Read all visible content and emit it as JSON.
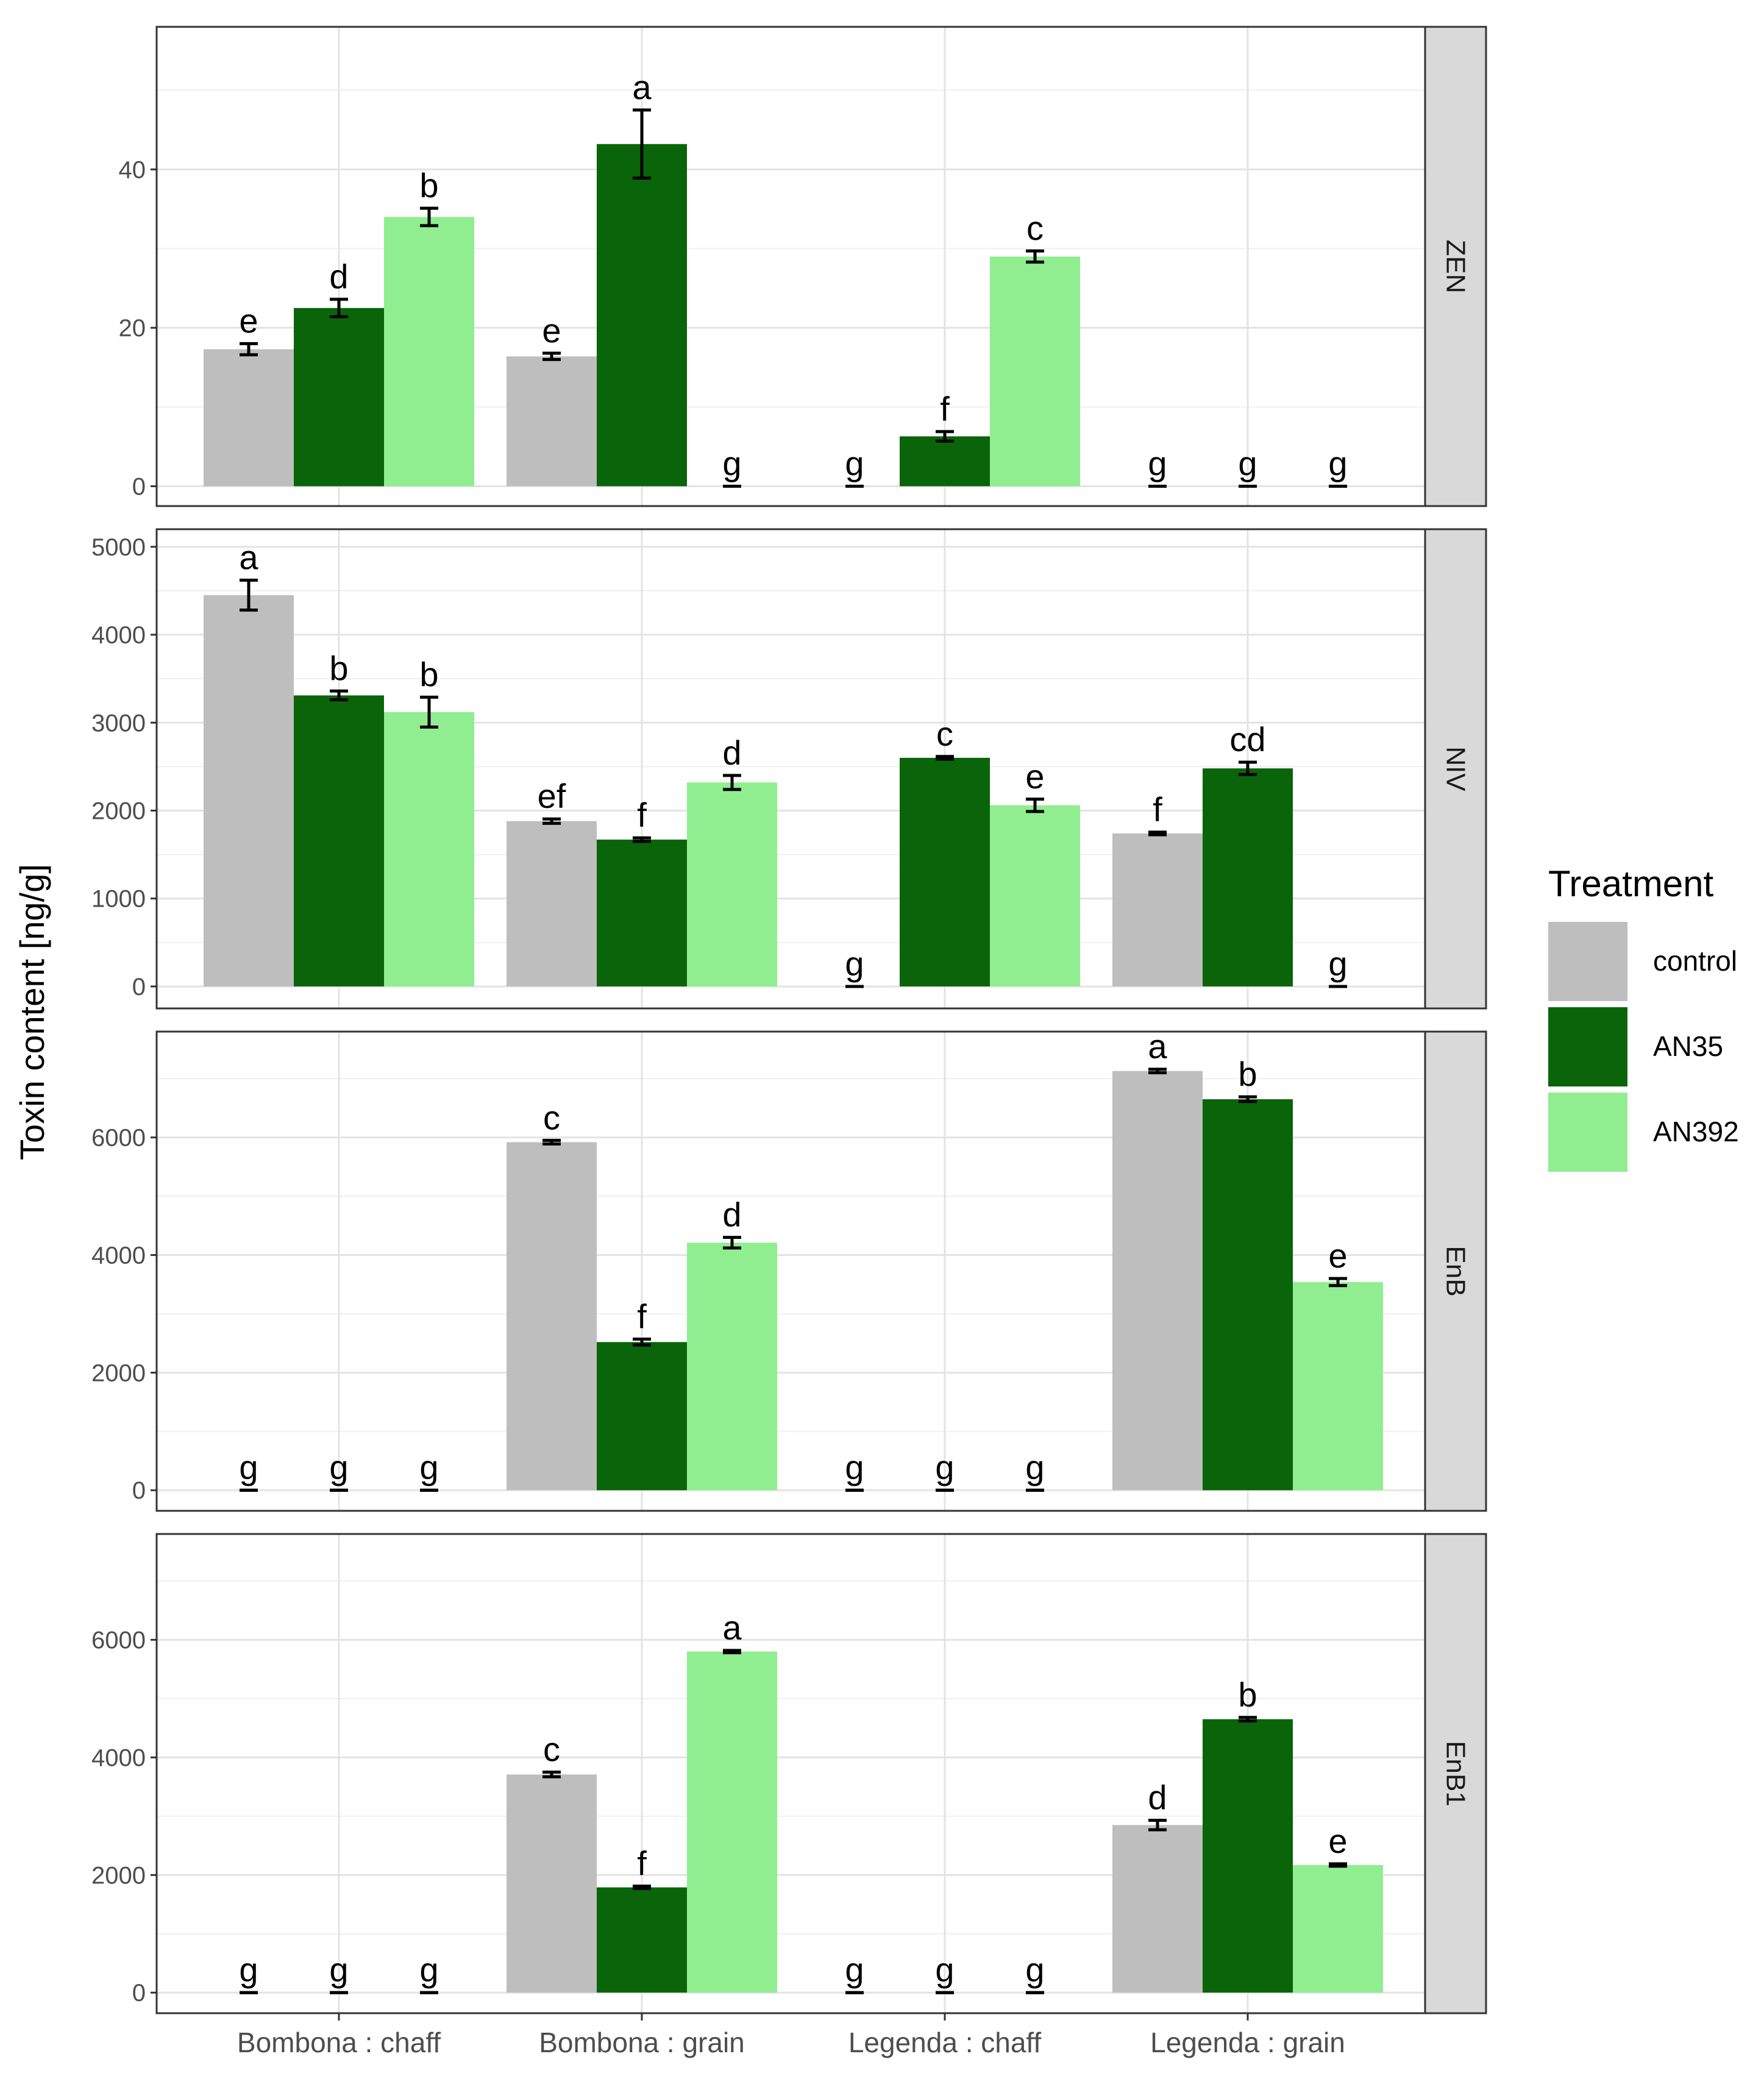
{
  "chart_data": {
    "type": "bar",
    "ylabel": "Toxin content [ng/g]",
    "xlabel": "",
    "categories": [
      "Bombona : chaff",
      "Bombona : grain",
      "Legenda : chaff",
      "Legenda : grain"
    ],
    "legend": {
      "title": "Treatment",
      "placement": "right",
      "entries": [
        {
          "name": "control",
          "color": "#bebebe"
        },
        {
          "name": "AN35",
          "color": "#0a640a"
        },
        {
          "name": "AN392",
          "color": "#90ee90"
        }
      ]
    },
    "facets": [
      {
        "strip": "ZEN",
        "ylim": [
          -2.5,
          58
        ],
        "yticks": [
          0,
          20,
          40
        ],
        "series": [
          {
            "name": "control",
            "values": [
              17.3,
              16.4,
              0,
              0
            ],
            "errors": [
              0.7,
              0.4,
              0,
              0
            ],
            "letters": [
              "e",
              "e",
              "g",
              "g"
            ]
          },
          {
            "name": "AN35",
            "values": [
              22.5,
              43.2,
              6.3,
              0
            ],
            "errors": [
              1.1,
              4.3,
              0.6,
              0
            ],
            "letters": [
              "d",
              "a",
              "f",
              "g"
            ]
          },
          {
            "name": "AN392",
            "values": [
              34.0,
              0,
              29.0,
              0
            ],
            "errors": [
              1.1,
              0,
              0.7,
              0
            ],
            "letters": [
              "b",
              "g",
              "c",
              "g"
            ]
          }
        ]
      },
      {
        "strip": "NIV",
        "ylim": [
          -250,
          5200
        ],
        "yticks": [
          0,
          1000,
          2000,
          3000,
          4000,
          5000
        ],
        "series": [
          {
            "name": "control",
            "values": [
              4450,
              1880,
              0,
              1740
            ],
            "errors": [
              170,
              25,
              0,
              15
            ],
            "letters": [
              "a",
              "ef",
              "g",
              "f"
            ]
          },
          {
            "name": "AN35",
            "values": [
              3310,
              1670,
              2600,
              2480
            ],
            "errors": [
              50,
              20,
              15,
              70
            ],
            "letters": [
              "b",
              "f",
              "c",
              "cd"
            ]
          },
          {
            "name": "AN392",
            "values": [
              3120,
              2320,
              2060,
              0
            ],
            "errors": [
              170,
              80,
              70,
              0
            ],
            "letters": [
              "b",
              "d",
              "e",
              "g"
            ]
          }
        ]
      },
      {
        "strip": "EnB",
        "ylim": [
          -350,
          7800
        ],
        "yticks": [
          0,
          2000,
          4000,
          6000
        ],
        "series": [
          {
            "name": "control",
            "values": [
              0,
              5920,
              0,
              7130
            ],
            "errors": [
              0,
              30,
              0,
              30
            ],
            "letters": [
              "g",
              "c",
              "g",
              "a"
            ]
          },
          {
            "name": "AN35",
            "values": [
              0,
              2520,
              0,
              6650
            ],
            "errors": [
              0,
              50,
              0,
              40
            ],
            "letters": [
              "g",
              "f",
              "g",
              "b"
            ]
          },
          {
            "name": "AN392",
            "values": [
              0,
              4210,
              0,
              3540
            ],
            "errors": [
              0,
              90,
              0,
              60
            ],
            "letters": [
              "g",
              "d",
              "g",
              "e"
            ]
          }
        ]
      },
      {
        "strip": "EnB1",
        "ylim": [
          -350,
          7800
        ],
        "yticks": [
          0,
          2000,
          4000,
          6000
        ],
        "series": [
          {
            "name": "control",
            "values": [
              0,
              3710,
              0,
              2850
            ],
            "errors": [
              0,
              40,
              0,
              80
            ],
            "letters": [
              "g",
              "c",
              "g",
              "d"
            ]
          },
          {
            "name": "AN35",
            "values": [
              0,
              1790,
              0,
              4650
            ],
            "errors": [
              0,
              20,
              0,
              30
            ],
            "letters": [
              "g",
              "f",
              "g",
              "b"
            ]
          },
          {
            "name": "AN392",
            "values": [
              0,
              5800,
              0,
              2170
            ],
            "errors": [
              0,
              20,
              0,
              20
            ],
            "letters": [
              "g",
              "a",
              "g",
              "e"
            ]
          }
        ]
      }
    ]
  }
}
